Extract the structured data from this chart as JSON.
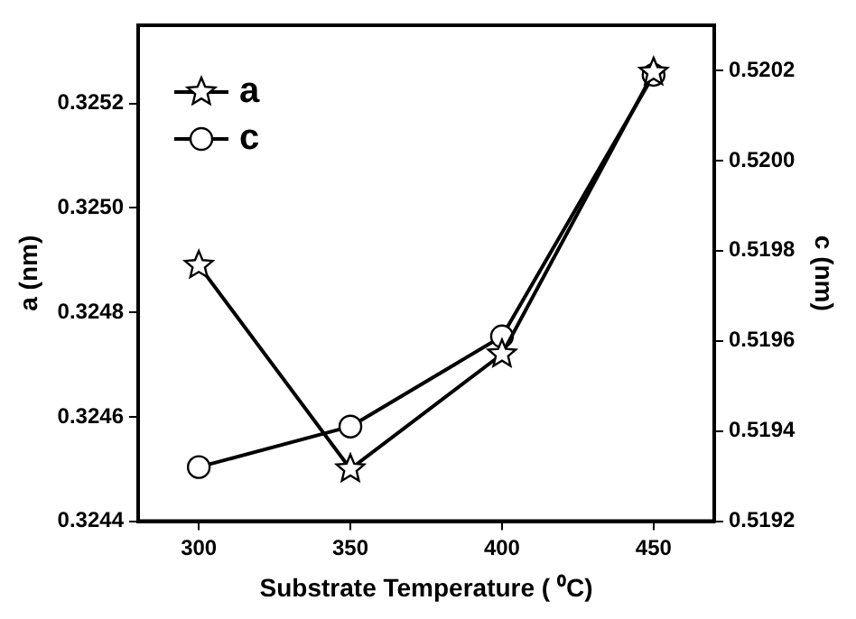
{
  "chart_data": {
    "type": "line",
    "xlabel": "Substrate Temperature ( ⁰C)",
    "ylabel": "a (nm)",
    "y2label": "c (nm)",
    "x": [
      300,
      350,
      400,
      450
    ],
    "series": [
      {
        "name": "a",
        "color": "#000000",
        "marker": "star",
        "values": [
          0.32489,
          0.3245,
          0.32472,
          0.32526
        ]
      },
      {
        "name": "c",
        "color": "#000000",
        "marker": "circle",
        "axis": "y2",
        "values": [
          0.51932,
          0.51941,
          0.51961,
          0.52019
        ]
      }
    ],
    "xlim": [
      280,
      470
    ],
    "xticks": [
      300,
      350,
      400,
      450
    ],
    "ylim": [
      0.3244,
      0.32535
    ],
    "yticks": [
      0.3244,
      0.3246,
      0.3248,
      {
        "value": 0.325,
        "label": "0.3250"
      },
      0.3252
    ],
    "y2lim": [
      0.5192,
      0.5203
    ],
    "y2ticks": [
      0.5192,
      0.5194,
      0.5196,
      0.5198,
      {
        "value": 0.52,
        "label": "0.5200"
      },
      0.5202
    ],
    "grid": false,
    "legend": "top left",
    "line_style": "solid"
  }
}
